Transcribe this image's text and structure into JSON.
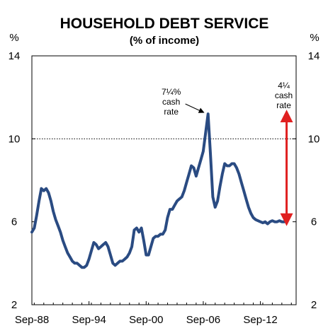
{
  "chart_data": {
    "type": "line",
    "title": "HOUSEHOLD DEBT SERVICE",
    "subtitle": "(% of income)",
    "ylabel_left": "%",
    "ylabel_right": "%",
    "ylim": [
      2,
      14
    ],
    "yticks": [
      2,
      6,
      10,
      14
    ],
    "grid": "horizontal at 10",
    "x_start": 1988.75,
    "x_end": 2016.5,
    "xticks": [
      {
        "label": "Sep-88",
        "x": 1988.75
      },
      {
        "label": "Sep-94",
        "x": 1994.75
      },
      {
        "label": "Sep-00",
        "x": 2000.75
      },
      {
        "label": "Sep-06",
        "x": 2006.75
      },
      {
        "label": "Sep-12",
        "x": 2012.75
      }
    ],
    "series": [
      {
        "color": "#2a4b82",
        "points": [
          [
            1988.75,
            5.5
          ],
          [
            1989.0,
            5.7
          ],
          [
            1989.25,
            6.3
          ],
          [
            1989.5,
            7.0
          ],
          [
            1989.75,
            7.6
          ],
          [
            1990.0,
            7.5
          ],
          [
            1990.25,
            7.6
          ],
          [
            1990.5,
            7.4
          ],
          [
            1990.75,
            7.0
          ],
          [
            1991.0,
            6.5
          ],
          [
            1991.25,
            6.1
          ],
          [
            1991.5,
            5.8
          ],
          [
            1991.75,
            5.5
          ],
          [
            1992.0,
            5.1
          ],
          [
            1992.25,
            4.8
          ],
          [
            1992.5,
            4.5
          ],
          [
            1992.75,
            4.3
          ],
          [
            1993.0,
            4.1
          ],
          [
            1993.25,
            4.0
          ],
          [
            1993.5,
            4.0
          ],
          [
            1993.75,
            3.9
          ],
          [
            1994.0,
            3.8
          ],
          [
            1994.25,
            3.8
          ],
          [
            1994.5,
            3.9
          ],
          [
            1994.75,
            4.2
          ],
          [
            1995.0,
            4.6
          ],
          [
            1995.25,
            5.0
          ],
          [
            1995.5,
            4.9
          ],
          [
            1995.75,
            4.7
          ],
          [
            1996.0,
            4.8
          ],
          [
            1996.25,
            4.9
          ],
          [
            1996.5,
            5.0
          ],
          [
            1996.75,
            4.8
          ],
          [
            1997.0,
            4.4
          ],
          [
            1997.25,
            4.0
          ],
          [
            1997.5,
            3.9
          ],
          [
            1997.75,
            4.0
          ],
          [
            1998.0,
            4.1
          ],
          [
            1998.25,
            4.1
          ],
          [
            1998.5,
            4.2
          ],
          [
            1998.75,
            4.3
          ],
          [
            1999.0,
            4.5
          ],
          [
            1999.25,
            4.8
          ],
          [
            1999.5,
            5.6
          ],
          [
            1999.75,
            5.7
          ],
          [
            2000.0,
            5.5
          ],
          [
            2000.25,
            5.7
          ],
          [
            2000.5,
            5.1
          ],
          [
            2000.75,
            4.4
          ],
          [
            2001.0,
            4.4
          ],
          [
            2001.25,
            4.8
          ],
          [
            2001.5,
            5.2
          ],
          [
            2001.75,
            5.3
          ],
          [
            2002.0,
            5.3
          ],
          [
            2002.25,
            5.4
          ],
          [
            2002.5,
            5.4
          ],
          [
            2002.75,
            5.6
          ],
          [
            2003.0,
            6.2
          ],
          [
            2003.25,
            6.6
          ],
          [
            2003.5,
            6.6
          ],
          [
            2003.75,
            6.8
          ],
          [
            2004.0,
            7.0
          ],
          [
            2004.25,
            7.1
          ],
          [
            2004.5,
            7.2
          ],
          [
            2004.75,
            7.5
          ],
          [
            2005.0,
            7.9
          ],
          [
            2005.25,
            8.3
          ],
          [
            2005.5,
            8.7
          ],
          [
            2005.75,
            8.6
          ],
          [
            2006.0,
            8.2
          ],
          [
            2006.25,
            8.6
          ],
          [
            2006.5,
            9.0
          ],
          [
            2006.75,
            9.4
          ],
          [
            2007.0,
            10.3
          ],
          [
            2007.25,
            11.2
          ],
          [
            2007.5,
            9.3
          ],
          [
            2007.75,
            7.2
          ],
          [
            2008.0,
            6.7
          ],
          [
            2008.25,
            7.0
          ],
          [
            2008.5,
            7.7
          ],
          [
            2008.75,
            8.3
          ],
          [
            2009.0,
            8.8
          ],
          [
            2009.25,
            8.7
          ],
          [
            2009.5,
            8.7
          ],
          [
            2009.75,
            8.8
          ],
          [
            2010.0,
            8.8
          ],
          [
            2010.25,
            8.6
          ],
          [
            2010.5,
            8.3
          ],
          [
            2010.75,
            7.9
          ],
          [
            2011.0,
            7.5
          ],
          [
            2011.25,
            7.1
          ],
          [
            2011.5,
            6.7
          ],
          [
            2011.75,
            6.4
          ],
          [
            2012.0,
            6.2
          ],
          [
            2012.25,
            6.1
          ],
          [
            2012.5,
            6.05
          ],
          [
            2012.75,
            6.0
          ],
          [
            2013.0,
            5.95
          ],
          [
            2013.25,
            6.0
          ],
          [
            2013.5,
            5.9
          ],
          [
            2013.75,
            6.0
          ],
          [
            2014.0,
            6.05
          ],
          [
            2014.25,
            6.0
          ],
          [
            2014.5,
            6.0
          ],
          [
            2014.75,
            6.05
          ],
          [
            2015.0,
            6.0
          ],
          [
            2015.25,
            6.0
          ]
        ]
      }
    ],
    "annotations": [
      {
        "lines": [
          "7¼%",
          "cash",
          "rate"
        ],
        "arrow_to": [
          2007.25,
          11.2
        ]
      },
      {
        "lines": [
          "4¼",
          "cash",
          "rate"
        ],
        "range_x": 2015.5,
        "range_y": [
          6.1,
          11.1
        ],
        "color": "#e02020"
      }
    ]
  }
}
